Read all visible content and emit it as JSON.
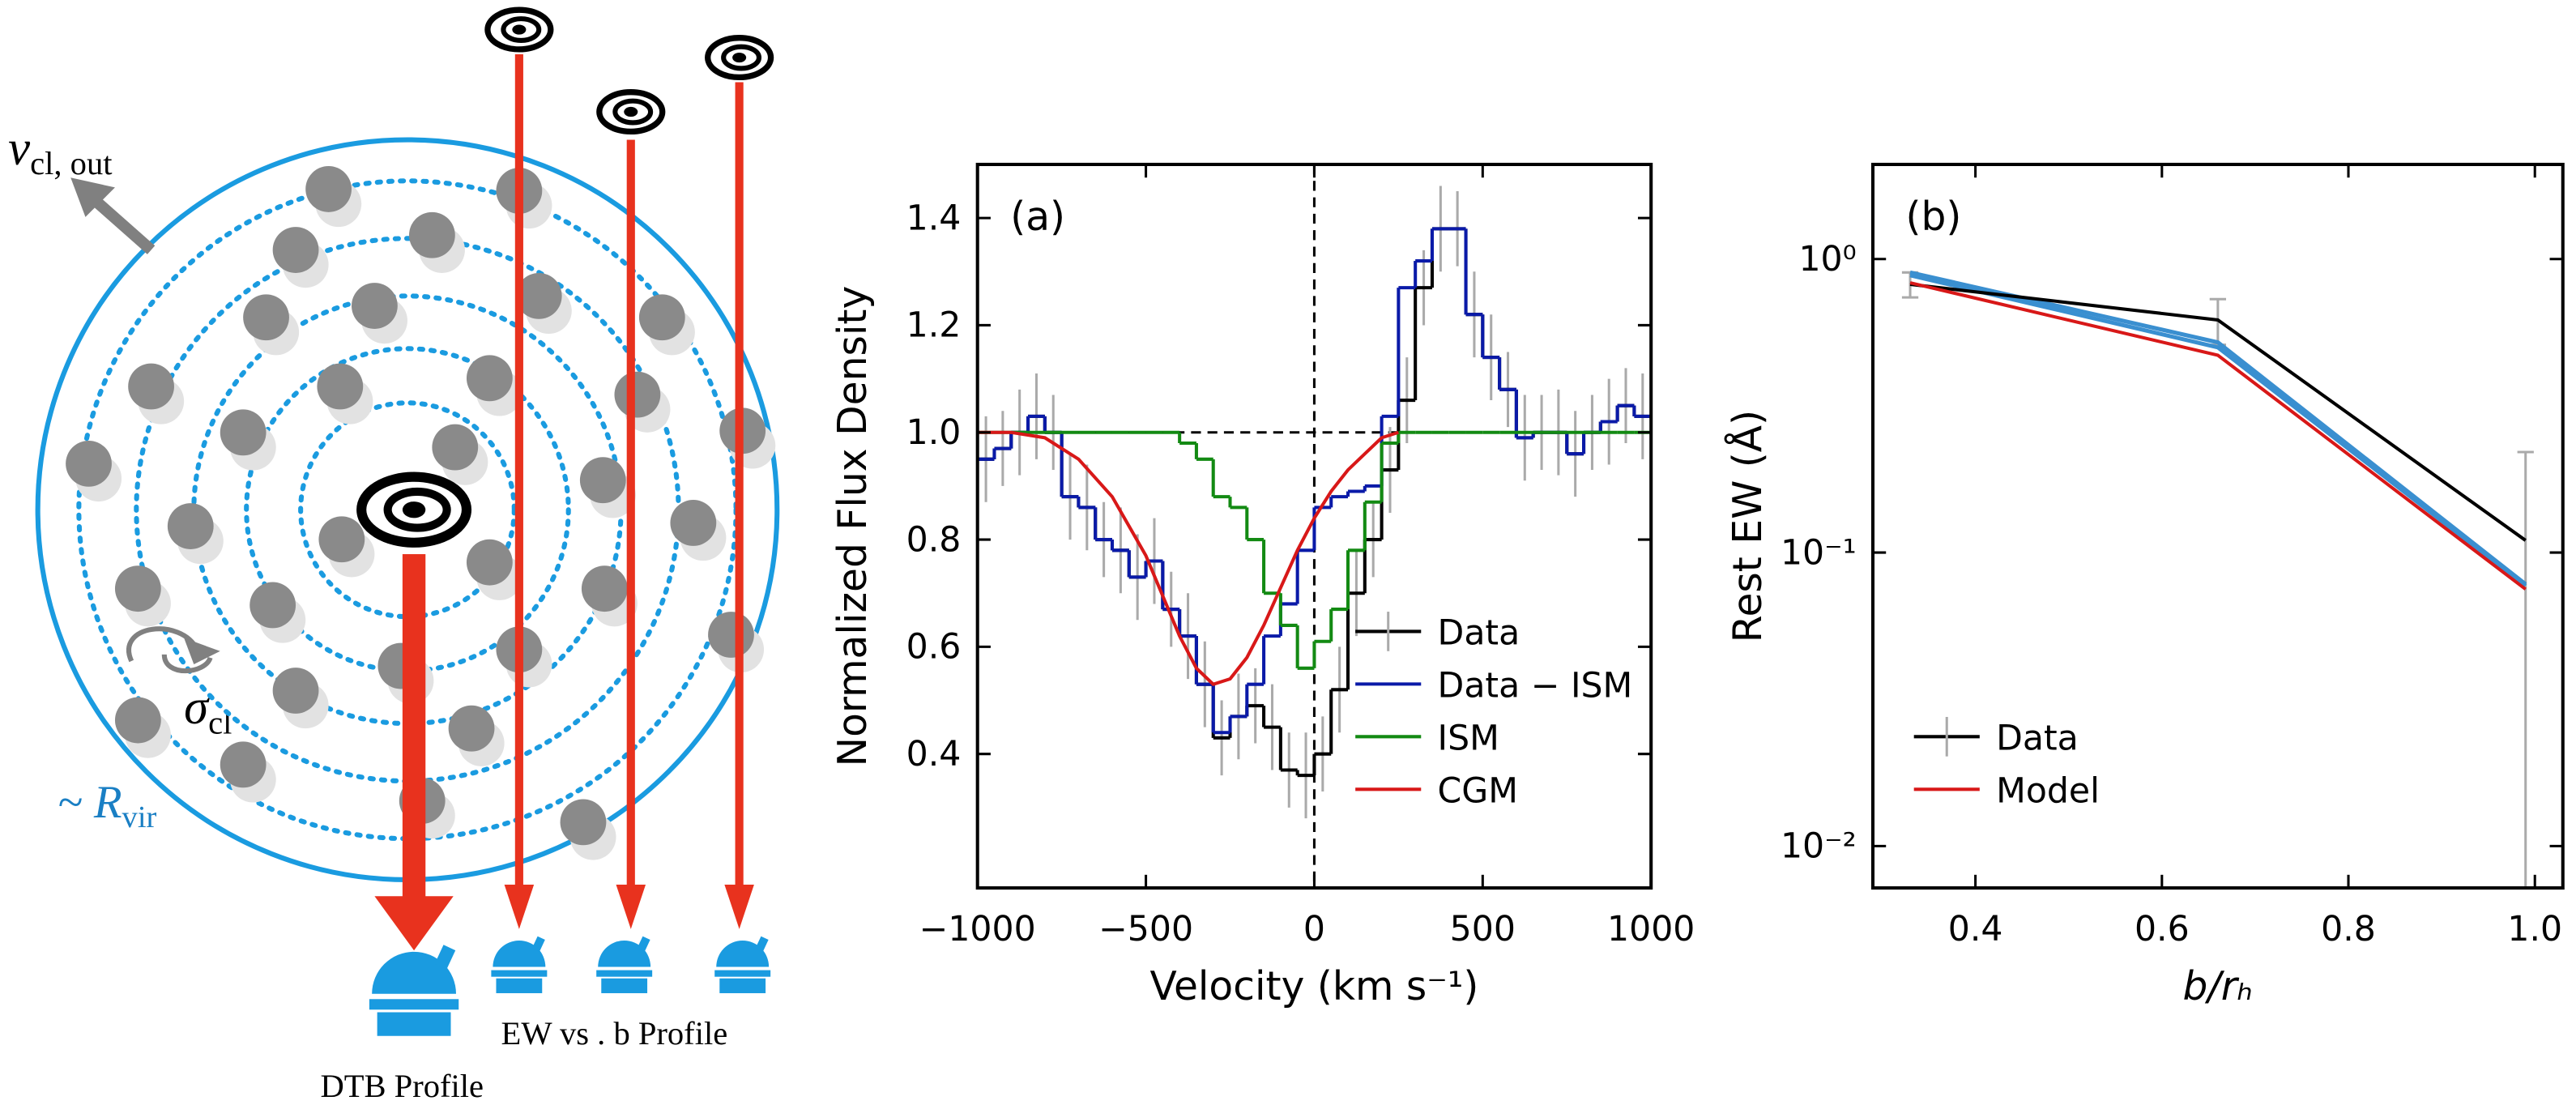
{
  "diagram": {
    "velocity_label": {
      "main": "v",
      "sub": "cl, out"
    },
    "dispersion_label": {
      "main": "σ",
      "sub": "cl"
    },
    "radius_label": {
      "main": "~ R",
      "sub": "vir"
    },
    "ew_profile_label": "EW vs . b Profile",
    "dtb_profile_label": "DTB Profile"
  },
  "chart_data": [
    {
      "type": "line",
      "panel_label": "(a)",
      "x_label": "Velocity (km s⁻¹)",
      "y_label": "Normalized Flux Density",
      "xlim": [
        -1000,
        1000
      ],
      "ylim": [
        0.15,
        1.5
      ],
      "xticks": [
        {
          "value": -1000,
          "label": "−1000"
        },
        {
          "value": -500,
          "label": "−500"
        },
        0,
        500,
        1000
      ],
      "yticks": [
        0.4,
        0.6,
        0.8,
        {
          "value": 1,
          "label": "1.0"
        },
        1.2,
        1.4
      ],
      "hlines": [
        1
      ],
      "vlines": [
        0
      ],
      "legend": "lower right",
      "x": [
        -1000,
        -950,
        -900,
        -850,
        -800,
        -750,
        -700,
        -650,
        -600,
        -550,
        -500,
        -450,
        -400,
        -350,
        -300,
        -250,
        -200,
        -150,
        -100,
        -50,
        0,
        50,
        100,
        150,
        200,
        250,
        300,
        350,
        400,
        450,
        500,
        550,
        600,
        650,
        700,
        750,
        800,
        850,
        900,
        950
      ],
      "series": [
        {
          "name": "Data",
          "color": "#000000",
          "step": true,
          "values": [
            0.95,
            0.97,
            1.0,
            1.03,
            1.0,
            0.88,
            0.86,
            0.8,
            0.78,
            0.73,
            0.76,
            0.67,
            0.62,
            0.53,
            0.43,
            0.47,
            0.49,
            0.45,
            0.37,
            0.36,
            0.4,
            0.52,
            0.7,
            0.8,
            0.93,
            1.06,
            1.27,
            1.38,
            1.38,
            1.22,
            1.14,
            1.08,
            0.99,
            1.0,
            1.0,
            0.96,
            1.0,
            1.02,
            1.05,
            1.03
          ],
          "errors": [
            0.08,
            0.07,
            0.08,
            0.08,
            0.07,
            0.08,
            0.08,
            0.07,
            0.08,
            0.08,
            0.08,
            0.07,
            0.08,
            0.08,
            0.07,
            0.08,
            0.07,
            0.08,
            0.07,
            0.08,
            0.07,
            0.08,
            0.08,
            0.07,
            0.08,
            0.08,
            0.07,
            0.08,
            0.07,
            0.08,
            0.08,
            0.07,
            0.08,
            0.07,
            0.08,
            0.08,
            0.07,
            0.08,
            0.07,
            0.08
          ],
          "error_color": "#aaaaaa"
        },
        {
          "name": "Data − ISM",
          "color": "#0a1aa8",
          "step": true,
          "values": [
            0.95,
            0.97,
            1.0,
            1.03,
            1.0,
            0.88,
            0.86,
            0.8,
            0.78,
            0.73,
            0.76,
            0.67,
            0.62,
            0.53,
            0.44,
            0.47,
            0.53,
            0.62,
            0.68,
            0.78,
            0.86,
            0.88,
            0.89,
            0.9,
            1.03,
            1.27,
            1.32,
            1.38,
            1.38,
            1.22,
            1.14,
            1.08,
            0.99,
            1.0,
            1.0,
            0.96,
            1.0,
            1.02,
            1.05,
            1.03
          ]
        },
        {
          "name": "ISM",
          "color": "#138a13",
          "step": true,
          "values": [
            1.0,
            1.0,
            1.0,
            1.0,
            1.0,
            1.0,
            1.0,
            1.0,
            1.0,
            1.0,
            1.0,
            1.0,
            0.98,
            0.95,
            0.88,
            0.86,
            0.8,
            0.7,
            0.64,
            0.56,
            0.61,
            0.67,
            0.78,
            0.87,
            0.98,
            1.0,
            1.0,
            1.0,
            1.0,
            1.0,
            1.0,
            1.0,
            1.0,
            1.0,
            1.0,
            1.0,
            1.0,
            1.0,
            1.0,
            1.0
          ]
        },
        {
          "name": "CGM",
          "color": "#d81818",
          "x": [
            -1000,
            -900,
            -800,
            -700,
            -600,
            -500,
            -400,
            -350,
            -300,
            -250,
            -200,
            -150,
            -100,
            -50,
            0,
            50,
            100,
            150,
            200,
            250
          ],
          "values": [
            1.0,
            1.0,
            0.99,
            0.95,
            0.88,
            0.77,
            0.62,
            0.56,
            0.53,
            0.54,
            0.58,
            0.64,
            0.71,
            0.78,
            0.84,
            0.89,
            0.93,
            0.96,
            0.99,
            1.0
          ]
        }
      ]
    },
    {
      "type": "line",
      "panel_label": "(b)",
      "x_label": "b/rₕ",
      "y_label": "Rest EW (Å)",
      "yscale": "log",
      "xlim": [
        0.29,
        1.03
      ],
      "ylim": [
        0.0072,
        2.1
      ],
      "xticks": [
        0.4,
        0.6,
        0.8,
        {
          "value": 1,
          "label": "1.0"
        }
      ],
      "yticks": [
        {
          "value": 0.01,
          "label": "10⁻²"
        },
        {
          "value": 0.1,
          "label": "10⁻¹"
        },
        {
          "value": 1,
          "label": "10⁰"
        }
      ],
      "legend": "lower left",
      "x": [
        0.33,
        0.66,
        0.99
      ],
      "model_variants": {
        "color": "#3a8fd0",
        "values": [
          [
            0.88,
            0.5,
            0.077
          ],
          [
            0.9,
            0.52,
            0.078
          ]
        ]
      },
      "series": [
        {
          "name": "Data",
          "color": "#000000",
          "values": [
            0.82,
            0.62,
            0.11
          ],
          "errors": [
            0.08,
            0.11,
            0.11
          ],
          "error_color": "#aaaaaa"
        },
        {
          "name": "Model",
          "color": "#d81818",
          "values": [
            0.83,
            0.47,
            0.075
          ]
        }
      ]
    }
  ]
}
